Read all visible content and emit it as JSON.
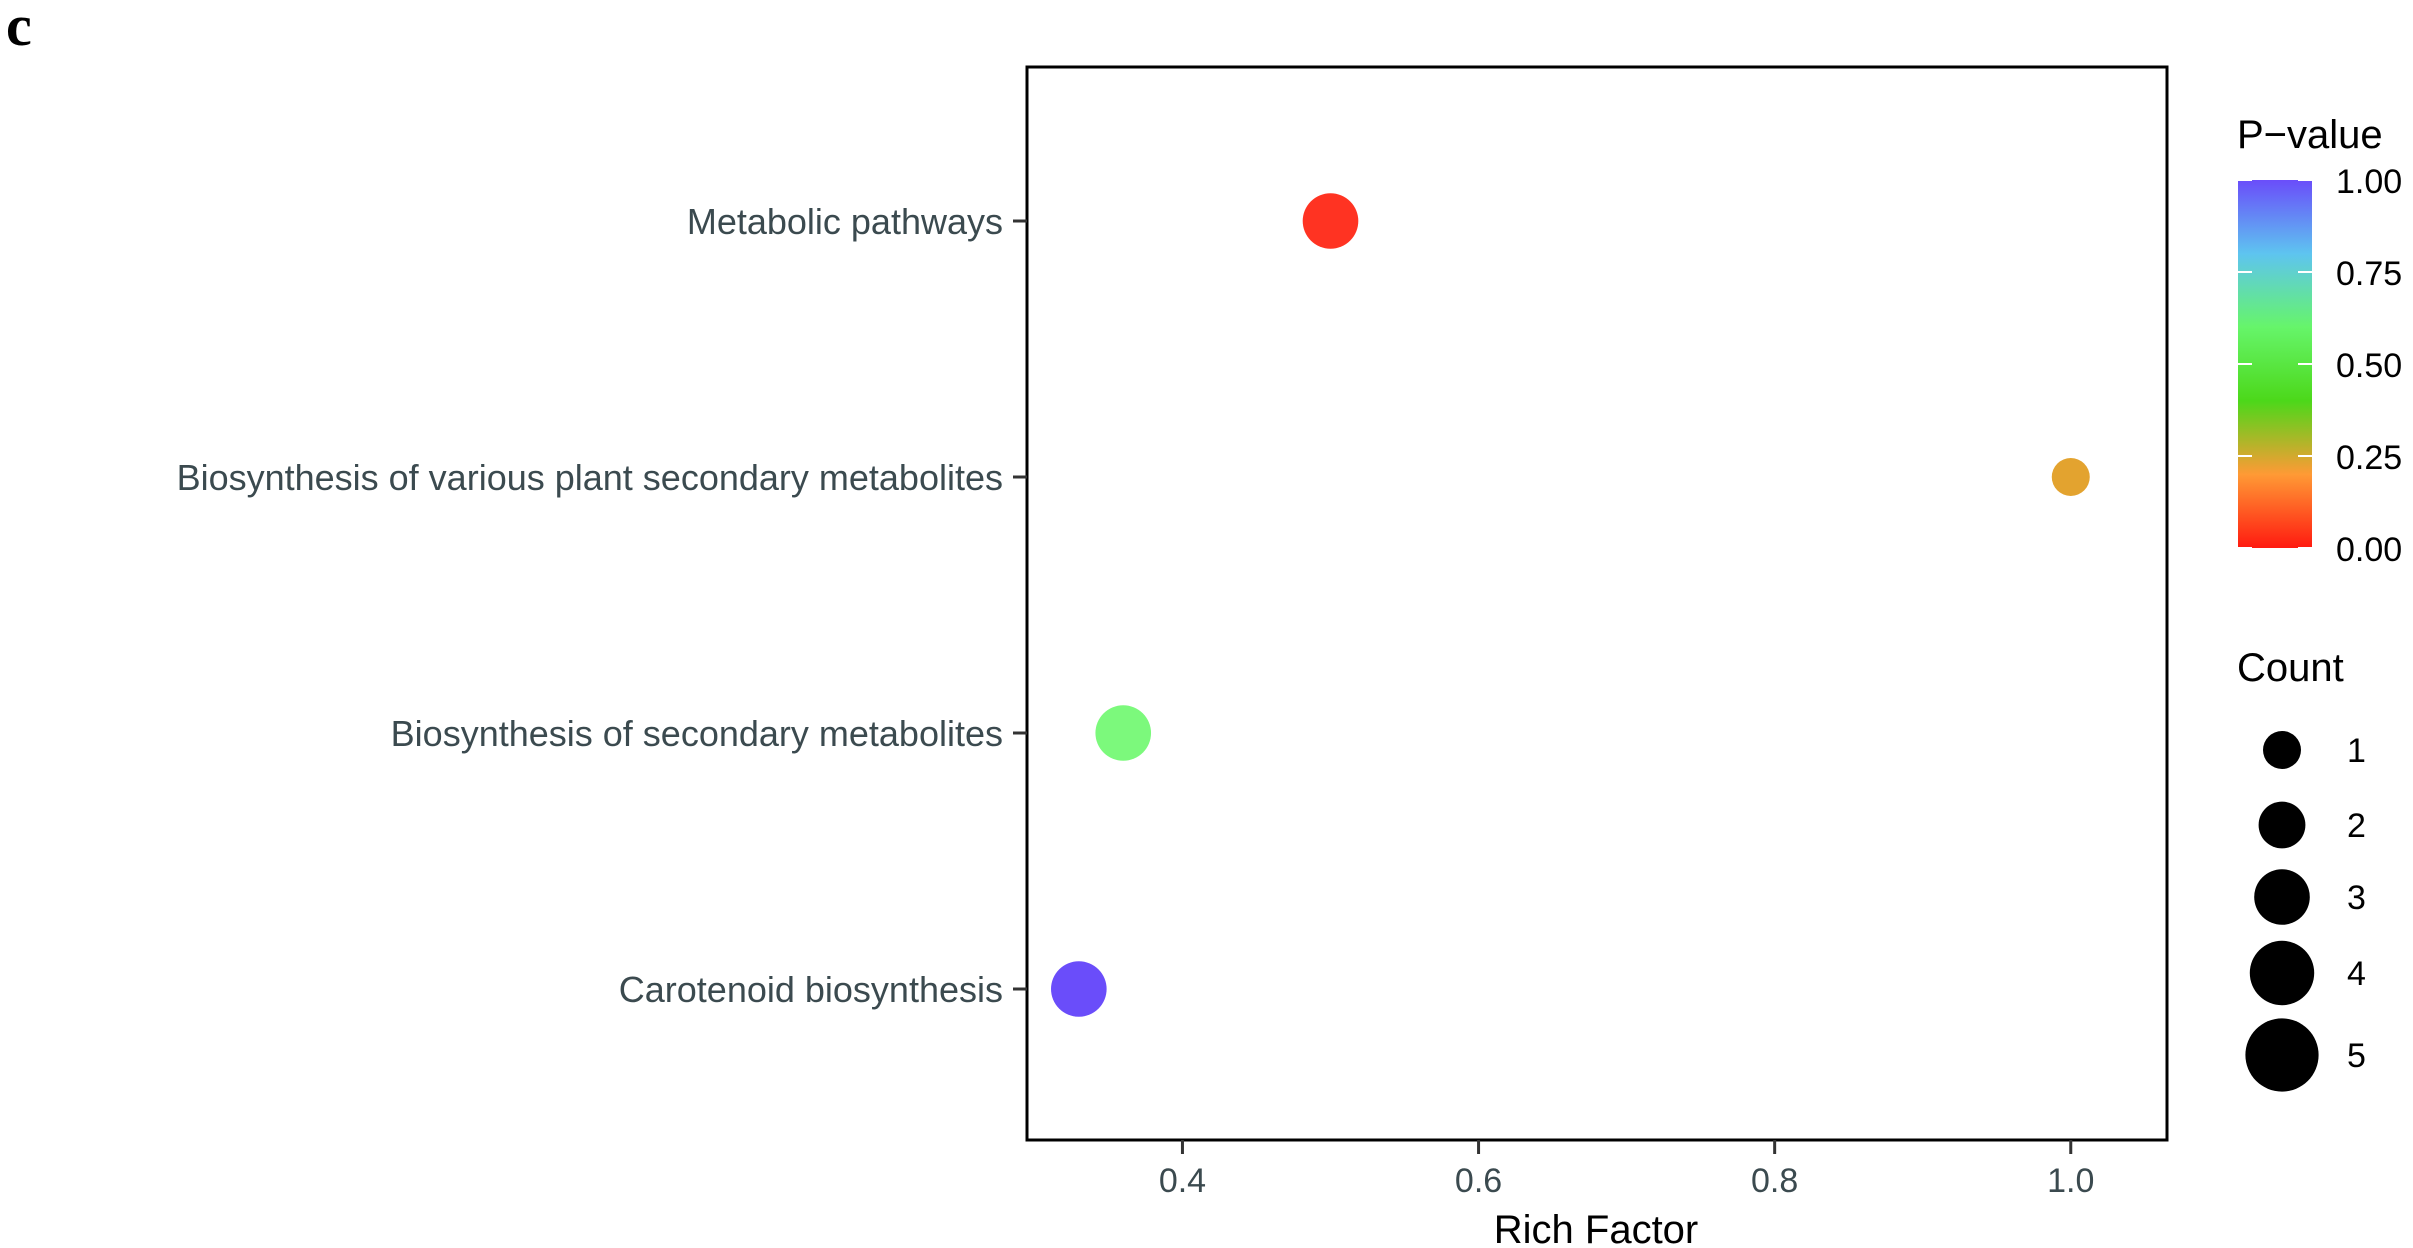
{
  "figure": {
    "panel_label": "c"
  },
  "chart_data": {
    "type": "scatter",
    "title": "",
    "xlabel": "Rich Factor",
    "ylabel": "",
    "xlim": [
      0.295,
      1.065
    ],
    "x_ticks": [
      0.4,
      0.6,
      0.8,
      1.0
    ],
    "x_tick_labels": [
      "0.4",
      "0.6",
      "0.8",
      "1.0"
    ],
    "categories": [
      "Metabolic pathways",
      "Biosynthesis of various plant secondary metabolites",
      "Biosynthesis of secondary metabolites",
      "Carotenoid biosynthesis"
    ],
    "grid": false,
    "points": [
      {
        "category": "Metabolic pathways",
        "x": 0.5,
        "count": 3,
        "p_value": 0.05,
        "color": "#ff3322"
      },
      {
        "category": "Biosynthesis of various plant secondary metabolites",
        "x": 1.0,
        "count": 1,
        "p_value": 0.3,
        "color": "#e3a32f"
      },
      {
        "category": "Biosynthesis of secondary metabolites",
        "x": 0.36,
        "count": 3,
        "p_value": 0.6,
        "color": "#7cf97c"
      },
      {
        "category": "Carotenoid biosynthesis",
        "x": 0.33,
        "count": 3,
        "p_value": 0.95,
        "color": "#6a4dfa"
      }
    ],
    "legend_color": {
      "title": "P−value",
      "ticks": [
        1.0,
        0.75,
        0.5,
        0.25,
        0.0
      ],
      "tick_labels": [
        "1.00",
        "0.75",
        "0.50",
        "0.25",
        "0.00"
      ],
      "gradient": [
        "#6a4dfa",
        "#5ec4f0",
        "#66f56a",
        "#4cd81a",
        "#ff9a35",
        "#ff1a10"
      ],
      "placement": "right"
    },
    "legend_size": {
      "title": "Count",
      "values": [
        1,
        2,
        3,
        4,
        5
      ],
      "labels": [
        "1",
        "2",
        "3",
        "4",
        "5"
      ],
      "color": "#000000",
      "placement": "right"
    }
  }
}
